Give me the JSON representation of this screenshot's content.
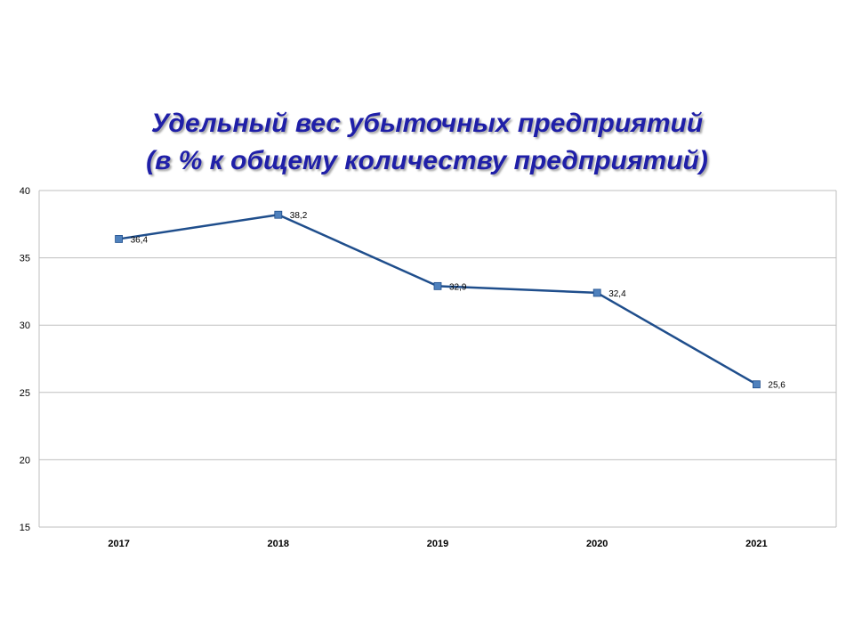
{
  "title": {
    "line1": "Удельный вес убыточных предприятий",
    "line2": "(в % к общему количеству предприятий)"
  },
  "colors": {
    "title": "#1f1fa8",
    "line": "#1f4e8c",
    "marker": "#4f81bd",
    "grid": "#bfbfbf"
  },
  "chart_data": {
    "type": "line",
    "title": "Удельный вес убыточных предприятий (в % к общему количеству предприятий)",
    "categories": [
      "2017",
      "2018",
      "2019",
      "2020",
      "2021"
    ],
    "series": [
      {
        "values": [
          36.4,
          38.2,
          32.9,
          32.4,
          25.6
        ],
        "labels": [
          "36,4",
          "38,2",
          "32,9",
          "32,4",
          "25,6"
        ]
      }
    ],
    "ylim": [
      15,
      40
    ],
    "yticks": [
      15,
      20,
      25,
      30,
      35,
      40
    ],
    "ytick_labels": [
      "15",
      "20",
      "25",
      "30",
      "35",
      "40"
    ],
    "grid": true,
    "legend": "none",
    "xlabel": "",
    "ylabel": ""
  }
}
